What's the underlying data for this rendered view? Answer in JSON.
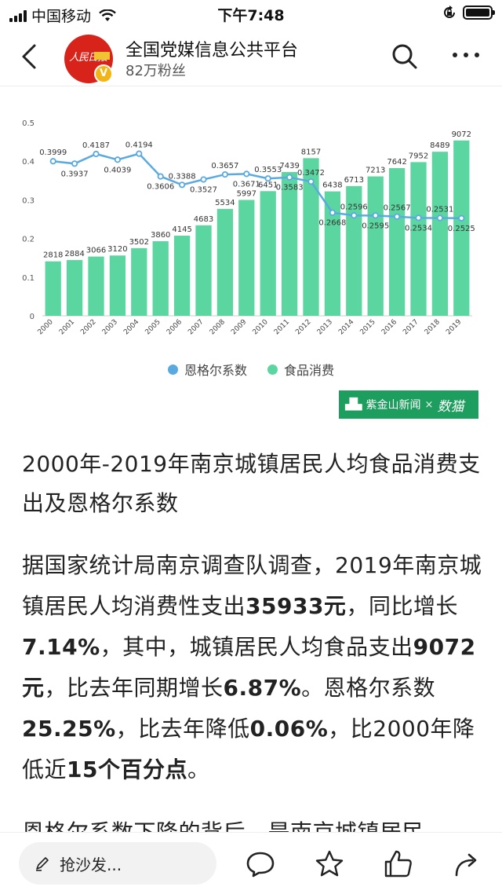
{
  "status_bar": {
    "carrier": "中国移动",
    "time": "下午7:48"
  },
  "header": {
    "account_name": "全国党媒信息公共平台",
    "followers": "82万粉丝",
    "avatar_logo_text": "人民日报"
  },
  "chart_data": {
    "type": "bar+line",
    "categories": [
      "2000",
      "2001",
      "2002",
      "2003",
      "2004",
      "2005",
      "2006",
      "2007",
      "2008",
      "2009",
      "2010",
      "2011",
      "2012",
      "2013",
      "2014",
      "2015",
      "2016",
      "2017",
      "2018",
      "2019"
    ],
    "series": [
      {
        "name": "食品消费",
        "type": "bar",
        "color": "#5cd6a0",
        "values": [
          2818,
          2884,
          3066,
          3120,
          3502,
          3860,
          4145,
          4683,
          5534,
          5997,
          6451,
          7439,
          8157,
          6438,
          6713,
          7213,
          7642,
          7952,
          8489,
          9072
        ]
      },
      {
        "name": "恩格尔系数",
        "type": "line",
        "color": "#5aaae0",
        "values": [
          0.3999,
          0.3937,
          0.4187,
          0.4039,
          0.4194,
          0.3606,
          0.3388,
          0.3527,
          0.3657,
          0.3671,
          0.3553,
          0.3583,
          0.3472,
          0.2668,
          0.2596,
          0.2595,
          0.2567,
          0.2534,
          0.2531,
          0.2525
        ],
        "labels": [
          "0.3999",
          "0.3937",
          "0.4187",
          "0.4039",
          "0.4194",
          "0.3606",
          "0.3388",
          "0.3527",
          "0.3657",
          "0.3671",
          "0.3553",
          "0.3583",
          "0.3472",
          "0.2668",
          "0.2596",
          "0.2595",
          "0.2567",
          "0.2534",
          "0.2531",
          "0.2525"
        ]
      }
    ],
    "y_ticks": [
      "0",
      "0.1",
      "0.2",
      "0.3",
      "0.4",
      "0.5"
    ],
    "ylim": [
      0,
      0.5
    ],
    "bar_max": 10000,
    "grid": false,
    "legend_position": "bottom-center"
  },
  "legend": {
    "items": [
      {
        "label": "恩格尔系数",
        "color": "#5aaae0"
      },
      {
        "label": "食品消费",
        "color": "#5cd6a0"
      }
    ]
  },
  "brand": {
    "name": "紫金山新闻",
    "times": "×",
    "partner": "数猫"
  },
  "article": {
    "title": "2000年-2019年南京城镇居民人均食品消费支出及恩格尔系数",
    "body": {
      "t1": "据国家统计局南京调查队调查，2019年南京城镇居民人均消费性支出",
      "b1": "35933元",
      "t2": "，同比增长",
      "b2": "7.14%",
      "t3": "，其中，城镇居民人均食品支出",
      "b3": "9072元",
      "t4": "，比去年同期增长",
      "b4": "6.87%",
      "t5": "。恩格尔系数",
      "b5": "25.25%",
      "t6": "，比去年降低",
      "b6": "0.06%",
      "t7": "，比2000年降低近",
      "b7": "15个百分点",
      "t8": "。"
    },
    "next_paragraph": "恩格尔系数下降的背后，是南京城镇居民"
  },
  "bottom_bar": {
    "comment_placeholder": "抢沙发..."
  }
}
